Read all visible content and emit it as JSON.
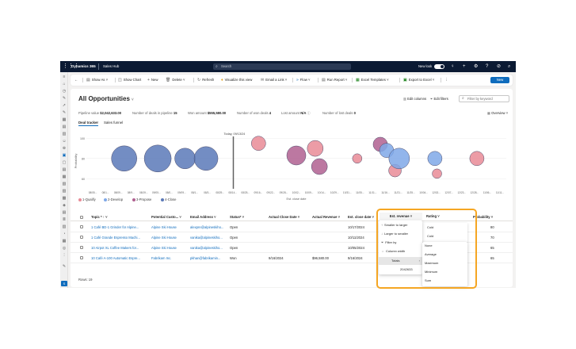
{
  "topbar": {
    "grid_icon": "waffle-icon",
    "app_name": "Dynamics 365",
    "area_name": "Sales Hub",
    "search_placeholder": "Search",
    "new_look_label": "New look"
  },
  "commands": {
    "back": "←",
    "show_as": "Show As",
    "show_chart": "Show Chart",
    "new": "New",
    "delete": "Delete",
    "refresh": "Refresh",
    "visualize": "Visualize this view",
    "email_link": "Email a Link",
    "flow": "Flow",
    "run_report": "Run Report",
    "excel_templates": "Excel Templates",
    "export_excel": "Export to Excel",
    "more": "⋮",
    "new_button": "New"
  },
  "view": {
    "title": "All Opportunities",
    "edit_columns": "Edit columns",
    "edit_filters": "Edit filters",
    "filter_placeholder": "Filter by keyword",
    "funnel_label": "Overview"
  },
  "metrics": {
    "pipeline_label": "Pipeline value",
    "pipeline_value": "$2,042,633.00",
    "deals_label": "Number of deals in pipeline",
    "deals_value": "15",
    "won_amount_label": "Won amount",
    "won_amount_value": "$555,580.00",
    "won_deals_label": "Number of won deals",
    "won_deals_value": "4",
    "lost_amount_label": "Lost amount",
    "lost_amount_value": "N/A",
    "lost_deals_label": "Number of lost deals",
    "lost_deals_value": "0"
  },
  "tabs": [
    "Deal tracker",
    "Sales funnel"
  ],
  "chart_data": {
    "type": "scatter",
    "title": "",
    "today_label": "Today, 09/13/24",
    "xlabel": "Est. close date",
    "ylabel": "Probability",
    "yticks": [
      100,
      80,
      60
    ],
    "xtick_labels": [
      "08/05...",
      "08/1...",
      "08/09...",
      "08/9...",
      "08/19...",
      "09/05...",
      "08/0...",
      "09/09...",
      "08/1...",
      "08/3...",
      "08/29...",
      "08/14...",
      "08/25...",
      "09/16...",
      "09/22...",
      "09/28...",
      "10/02...",
      "10/09...",
      "10/14...",
      "10/29...",
      "10/31...",
      "11/05...",
      "11/11...",
      "11/16...",
      "11/21...",
      "11/25...",
      "10/04...",
      "12/02...",
      "12/07...",
      "12/23...",
      "12/28...",
      "11/06...",
      "11/11..."
    ],
    "legend": [
      {
        "name": "1-Qualify",
        "color": "#e98b97"
      },
      {
        "name": "2-Develop",
        "color": "#7fa8e8"
      },
      {
        "name": "3-Propose",
        "color": "#b06090"
      },
      {
        "name": "4-Close",
        "color": "#5b79b8"
      }
    ],
    "points": [
      {
        "x": 0.09,
        "y": 80,
        "size": 16,
        "stage": "4-Close"
      },
      {
        "x": 0.17,
        "y": 80,
        "size": 17,
        "stage": "4-Close"
      },
      {
        "x": 0.235,
        "y": 80,
        "size": 13,
        "stage": "4-Close"
      },
      {
        "x": 0.285,
        "y": 80,
        "size": 15,
        "stage": "4-Close"
      },
      {
        "x": 0.41,
        "y": 95,
        "size": 9,
        "stage": "1-Qualify"
      },
      {
        "x": 0.5,
        "y": 83,
        "size": 12,
        "stage": "3-Propose"
      },
      {
        "x": 0.545,
        "y": 90,
        "size": 10,
        "stage": "1-Qualify"
      },
      {
        "x": 0.555,
        "y": 72,
        "size": 10,
        "stage": "3-Propose"
      },
      {
        "x": 0.645,
        "y": 80,
        "size": 6,
        "stage": "1-Qualify"
      },
      {
        "x": 0.7,
        "y": 94,
        "size": 9,
        "stage": "3-Propose"
      },
      {
        "x": 0.715,
        "y": 88,
        "size": 9,
        "stage": "2-Develop"
      },
      {
        "x": 0.735,
        "y": 68,
        "size": 8,
        "stage": "1-Qualify"
      },
      {
        "x": 0.745,
        "y": 80,
        "size": 13,
        "stage": "2-Develop"
      },
      {
        "x": 0.83,
        "y": 80,
        "size": 9,
        "stage": "2-Develop"
      },
      {
        "x": 0.835,
        "y": 65,
        "size": 6,
        "stage": "1-Qualify"
      },
      {
        "x": 0.93,
        "y": 80,
        "size": 9,
        "stage": "1-Qualify"
      }
    ]
  },
  "grid": {
    "headers": [
      "Topic * ↑ ˅",
      "Potential Custo... ˅",
      "Email Address ˅",
      "Status* ˅",
      "Actual Close Date ˅",
      "Actual Revenue ˅",
      "Est. close date ˅",
      "Est. revenue ˅",
      "Rating ˅",
      "Probability ˅"
    ],
    "rows": [
      {
        "topic": "1 Café BD-1 Grinder for Alpine...",
        "customer": "Alpine Ski House",
        "email": "alexpre@alpineskiho...",
        "status": "Open",
        "close": "",
        "revenue": "",
        "est_close": "10/17/2024",
        "probability": "80"
      },
      {
        "topic": "1 Café Grande Espresso Machi...",
        "customer": "Alpine Ski House",
        "email": "vanika@alpineskiho...",
        "status": "Open",
        "close": "",
        "revenue": "",
        "est_close": "10/11/2024",
        "probability": "70"
      },
      {
        "topic": "10 Airpot XL Coffee Makers for...",
        "customer": "Alpine Ski House",
        "email": "vanika@alpineskiho...",
        "status": "Open",
        "close": "",
        "revenue": "",
        "est_close": "10/05/2024",
        "probability": "65"
      },
      {
        "topic": "10 Café A-100 Automatic Espre...",
        "customer": "Fabrikam Inc.",
        "email": "pkhan@fabrikamin...",
        "status": "Won",
        "close": "9/16/2024",
        "revenue": "$96,580.00",
        "est_close": "9/16/2024",
        "probability": "65"
      }
    ],
    "row_count": "Rows: 19"
  },
  "column_menu": {
    "header": "Est. revenue ˅",
    "items": [
      "Smaller to larger",
      "Larger to smaller",
      "Filter by",
      "Column width"
    ],
    "totals_label": "Totals",
    "totals_value": "2042633"
  },
  "rating_menu": {
    "header": "Rating ˅",
    "values": [
      "Cold",
      "Cold"
    ],
    "options": [
      "None",
      "Average",
      "Maximum",
      "Minimum",
      "Sum"
    ]
  }
}
